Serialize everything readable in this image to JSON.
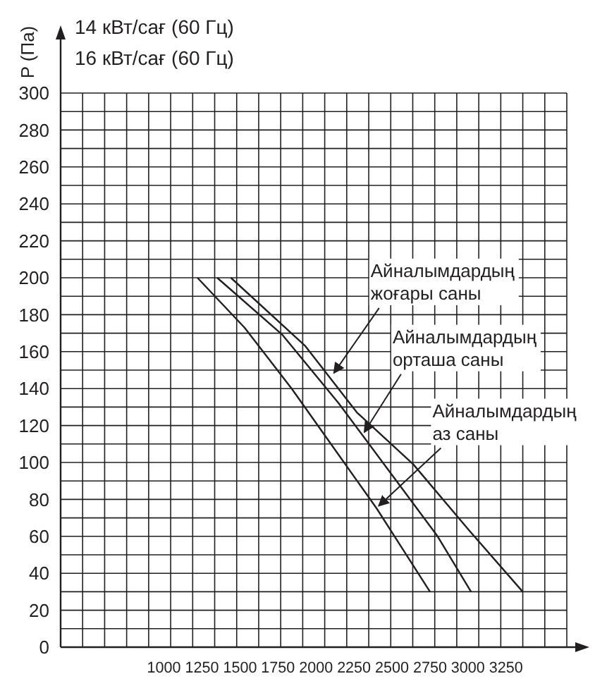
{
  "chart_data": {
    "type": "line",
    "title": "14 кВт/сағ (60 Гц)",
    "subtitle": "16 кВт/сағ (60 Гц)",
    "ylabel": "P (Па)",
    "xlim": [
      320,
      3650
    ],
    "xticks": [
      1000,
      1250,
      1500,
      1750,
      2000,
      2250,
      2500,
      2750,
      3000,
      3250
    ],
    "ylim": [
      0,
      300
    ],
    "yticks": [
      0,
      20,
      40,
      60,
      80,
      100,
      120,
      140,
      160,
      180,
      200,
      220,
      240,
      260,
      280,
      300
    ],
    "grid": true,
    "marker": "none",
    "line_style": "solid",
    "series": [
      {
        "color": "#231f20",
        "x": [
          1220,
          1530,
          1840,
          2150,
          2400,
          2750
        ],
        "values": [
          200,
          173,
          140,
          104,
          75,
          30
        ]
      },
      {
        "color": "#231f20",
        "x": [
          1350,
          1780,
          2150,
          2520,
          2800,
          3020
        ],
        "values": [
          200,
          169,
          132,
          91,
          60,
          30
        ]
      },
      {
        "color": "#231f20",
        "x": [
          1440,
          1930,
          2270,
          2640,
          3010,
          3360
        ],
        "values": [
          200,
          163,
          127,
          99,
          63,
          30
        ]
      }
    ],
    "annotations": [
      {
        "text": "Айналымдардың\nжоғары саны",
        "x": 2100,
        "y": 147
      },
      {
        "text": "Айналымдардың\nорташа саны",
        "x": 2300,
        "y": 115
      },
      {
        "text": "Айналымдардың\nаз саны",
        "x": 2395,
        "y": 75
      }
    ]
  }
}
